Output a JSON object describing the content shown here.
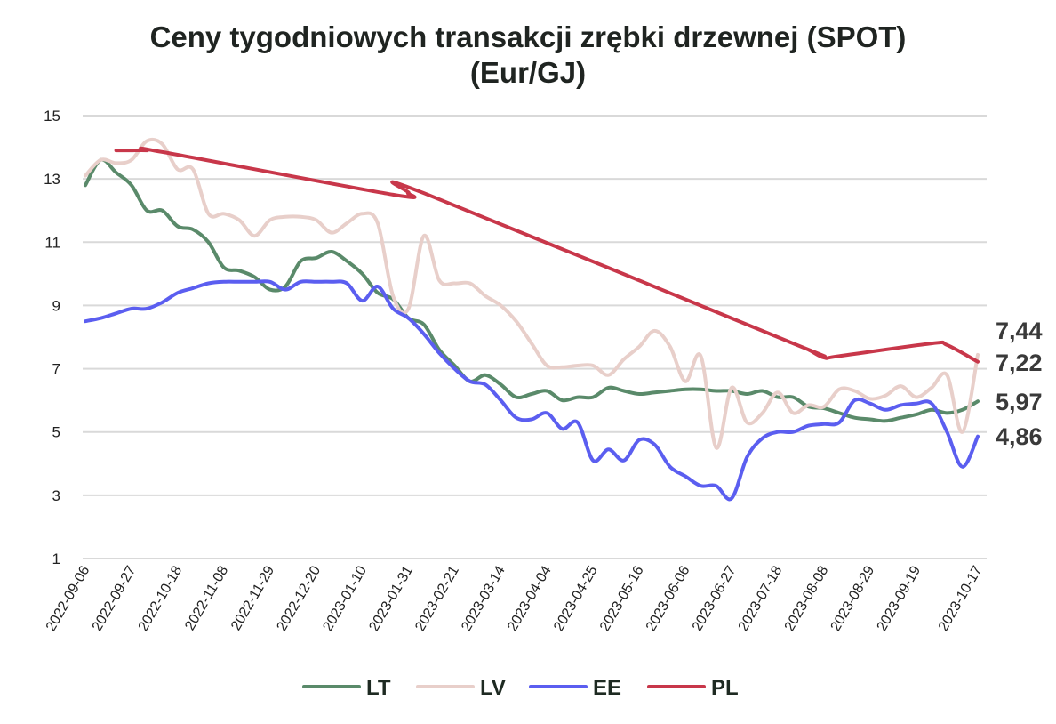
{
  "chart_data": {
    "type": "line",
    "title_line1": "Ceny tygodniowych transakcji zrębki drzewnej (SPOT)",
    "title_line2": "(Eur/GJ)",
    "xlabel": "",
    "ylabel": "",
    "ylim": [
      1,
      15
    ],
    "yticks": [
      "1",
      "3",
      "5",
      "7",
      "9",
      "11",
      "13",
      "15"
    ],
    "grid": true,
    "legend_position": "bottom",
    "x_tick_labels": [
      "2022-09-06",
      "2022-09-27",
      "2022-10-18",
      "2022-11-08",
      "2022-11-29",
      "2022-12-20",
      "2023-01-10",
      "2023-01-31",
      "2023-02-21",
      "2023-03-14",
      "2023-04-04",
      "2023-04-25",
      "2023-05-16",
      "2023-06-06",
      "2023-06-27",
      "2023-07-18",
      "2023-08-08",
      "2023-08-29",
      "2023-09-19",
      "2023-10-17"
    ],
    "end_labels": [
      "7,44",
      "7,22",
      "5,97",
      "4,86"
    ],
    "series": [
      {
        "name": "LT",
        "color": "#5a8a6a",
        "points": [
          [
            "2022-09-06",
            12.8
          ],
          [
            "2022-09-13",
            13.6
          ],
          [
            "2022-09-20",
            13.2
          ],
          [
            "2022-09-27",
            12.8
          ],
          [
            "2022-10-04",
            12.0
          ],
          [
            "2022-10-11",
            12.0
          ],
          [
            "2022-10-18",
            11.5
          ],
          [
            "2022-10-25",
            11.4
          ],
          [
            "2022-11-01",
            11.0
          ],
          [
            "2022-11-08",
            10.2
          ],
          [
            "2022-11-15",
            10.1
          ],
          [
            "2022-11-22",
            9.9
          ],
          [
            "2022-11-29",
            9.5
          ],
          [
            "2022-12-06",
            9.6
          ],
          [
            "2022-12-13",
            10.4
          ],
          [
            "2022-12-20",
            10.5
          ],
          [
            "2022-12-27",
            10.7
          ],
          [
            "2023-01-03",
            10.4
          ],
          [
            "2023-01-10",
            10.0
          ],
          [
            "2023-01-17",
            9.4
          ],
          [
            "2023-01-24",
            9.2
          ],
          [
            "2023-01-31",
            8.6
          ],
          [
            "2023-02-07",
            8.4
          ],
          [
            "2023-02-14",
            7.6
          ],
          [
            "2023-02-21",
            7.1
          ],
          [
            "2023-02-28",
            6.6
          ],
          [
            "2023-03-07",
            6.8
          ],
          [
            "2023-03-14",
            6.5
          ],
          [
            "2023-03-21",
            6.1
          ],
          [
            "2023-03-28",
            6.2
          ],
          [
            "2023-04-04",
            6.3
          ],
          [
            "2023-04-11",
            6.0
          ],
          [
            "2023-04-18",
            6.1
          ],
          [
            "2023-04-25",
            6.1
          ],
          [
            "2023-05-02",
            6.4
          ],
          [
            "2023-05-09",
            6.3
          ],
          [
            "2023-05-16",
            6.2
          ],
          [
            "2023-05-23",
            6.25
          ],
          [
            "2023-05-30",
            6.3
          ],
          [
            "2023-06-06",
            6.35
          ],
          [
            "2023-06-13",
            6.35
          ],
          [
            "2023-06-20",
            6.3
          ],
          [
            "2023-06-27",
            6.3
          ],
          [
            "2023-07-04",
            6.2
          ],
          [
            "2023-07-11",
            6.3
          ],
          [
            "2023-07-18",
            6.1
          ],
          [
            "2023-07-25",
            6.1
          ],
          [
            "2023-08-01",
            5.8
          ],
          [
            "2023-08-08",
            5.75
          ],
          [
            "2023-08-15",
            5.6
          ],
          [
            "2023-08-22",
            5.45
          ],
          [
            "2023-08-29",
            5.4
          ],
          [
            "2023-09-05",
            5.35
          ],
          [
            "2023-09-12",
            5.45
          ],
          [
            "2023-09-19",
            5.55
          ],
          [
            "2023-09-26",
            5.7
          ],
          [
            "2023-10-03",
            5.6
          ],
          [
            "2023-10-10",
            5.7
          ],
          [
            "2023-10-17",
            5.97
          ]
        ]
      },
      {
        "name": "LV",
        "color": "#e8cfca",
        "points": [
          [
            "2022-09-06",
            13.1
          ],
          [
            "2022-09-13",
            13.6
          ],
          [
            "2022-09-20",
            13.5
          ],
          [
            "2022-09-27",
            13.6
          ],
          [
            "2022-10-04",
            14.2
          ],
          [
            "2022-10-11",
            14.1
          ],
          [
            "2022-10-18",
            13.3
          ],
          [
            "2022-10-25",
            13.3
          ],
          [
            "2022-11-01",
            11.9
          ],
          [
            "2022-11-08",
            11.9
          ],
          [
            "2022-11-15",
            11.7
          ],
          [
            "2022-11-22",
            11.2
          ],
          [
            "2022-11-29",
            11.7
          ],
          [
            "2022-12-06",
            11.8
          ],
          [
            "2022-12-13",
            11.8
          ],
          [
            "2022-12-20",
            11.7
          ],
          [
            "2022-12-27",
            11.3
          ],
          [
            "2023-01-03",
            11.6
          ],
          [
            "2023-01-10",
            11.9
          ],
          [
            "2023-01-17",
            11.6
          ],
          [
            "2023-01-24",
            9.3
          ],
          [
            "2023-01-31",
            8.9
          ],
          [
            "2023-02-07",
            11.2
          ],
          [
            "2023-02-14",
            9.8
          ],
          [
            "2023-02-21",
            9.7
          ],
          [
            "2023-02-28",
            9.7
          ],
          [
            "2023-03-07",
            9.3
          ],
          [
            "2023-03-14",
            9.0
          ],
          [
            "2023-03-21",
            8.5
          ],
          [
            "2023-03-28",
            7.8
          ],
          [
            "2023-04-04",
            7.1
          ],
          [
            "2023-04-11",
            7.05
          ],
          [
            "2023-04-18",
            7.1
          ],
          [
            "2023-04-25",
            7.1
          ],
          [
            "2023-05-02",
            6.8
          ],
          [
            "2023-05-09",
            7.3
          ],
          [
            "2023-05-16",
            7.7
          ],
          [
            "2023-05-23",
            8.2
          ],
          [
            "2023-05-30",
            7.7
          ],
          [
            "2023-06-06",
            6.6
          ],
          [
            "2023-06-13",
            7.4
          ],
          [
            "2023-06-20",
            4.5
          ],
          [
            "2023-06-27",
            6.4
          ],
          [
            "2023-07-04",
            5.3
          ],
          [
            "2023-07-11",
            5.6
          ],
          [
            "2023-07-18",
            6.25
          ],
          [
            "2023-07-25",
            5.6
          ],
          [
            "2023-08-01",
            5.85
          ],
          [
            "2023-08-08",
            5.8
          ],
          [
            "2023-08-15",
            6.35
          ],
          [
            "2023-08-22",
            6.3
          ],
          [
            "2023-08-29",
            6.05
          ],
          [
            "2023-09-05",
            6.15
          ],
          [
            "2023-09-12",
            6.45
          ],
          [
            "2023-09-19",
            6.1
          ],
          [
            "2023-09-26",
            6.4
          ],
          [
            "2023-10-03",
            6.8
          ],
          [
            "2023-10-10",
            5.0
          ],
          [
            "2023-10-17",
            7.44
          ]
        ]
      },
      {
        "name": "EE",
        "color": "#5b5ef0",
        "points": [
          [
            "2022-09-06",
            8.5
          ],
          [
            "2022-09-13",
            8.6
          ],
          [
            "2022-09-20",
            8.75
          ],
          [
            "2022-09-27",
            8.9
          ],
          [
            "2022-10-04",
            8.9
          ],
          [
            "2022-10-11",
            9.1
          ],
          [
            "2022-10-18",
            9.4
          ],
          [
            "2022-10-25",
            9.55
          ],
          [
            "2022-11-01",
            9.7
          ],
          [
            "2022-11-08",
            9.75
          ],
          [
            "2022-11-15",
            9.75
          ],
          [
            "2022-11-22",
            9.75
          ],
          [
            "2022-11-29",
            9.75
          ],
          [
            "2022-12-06",
            9.5
          ],
          [
            "2022-12-13",
            9.75
          ],
          [
            "2022-12-20",
            9.75
          ],
          [
            "2022-12-27",
            9.75
          ],
          [
            "2023-01-03",
            9.7
          ],
          [
            "2023-01-10",
            9.15
          ],
          [
            "2023-01-17",
            9.6
          ],
          [
            "2023-01-24",
            8.9
          ],
          [
            "2023-01-31",
            8.6
          ],
          [
            "2023-02-07",
            8.1
          ],
          [
            "2023-02-14",
            7.5
          ],
          [
            "2023-02-21",
            7.0
          ],
          [
            "2023-02-28",
            6.6
          ],
          [
            "2023-03-07",
            6.5
          ],
          [
            "2023-03-14",
            6.0
          ],
          [
            "2023-03-21",
            5.45
          ],
          [
            "2023-03-28",
            5.4
          ],
          [
            "2023-04-04",
            5.6
          ],
          [
            "2023-04-11",
            5.1
          ],
          [
            "2023-04-18",
            5.3
          ],
          [
            "2023-04-25",
            4.1
          ],
          [
            "2023-05-02",
            4.45
          ],
          [
            "2023-05-09",
            4.1
          ],
          [
            "2023-05-16",
            4.75
          ],
          [
            "2023-05-23",
            4.6
          ],
          [
            "2023-05-30",
            3.9
          ],
          [
            "2023-06-06",
            3.6
          ],
          [
            "2023-06-13",
            3.3
          ],
          [
            "2023-06-20",
            3.3
          ],
          [
            "2023-06-27",
            2.9
          ],
          [
            "2023-07-04",
            4.2
          ],
          [
            "2023-07-11",
            4.8
          ],
          [
            "2023-07-18",
            5.0
          ],
          [
            "2023-07-25",
            5.0
          ],
          [
            "2023-08-01",
            5.2
          ],
          [
            "2023-08-08",
            5.25
          ],
          [
            "2023-08-15",
            5.3
          ],
          [
            "2023-08-22",
            6.0
          ],
          [
            "2023-08-29",
            5.9
          ],
          [
            "2023-09-05",
            5.7
          ],
          [
            "2023-09-12",
            5.85
          ],
          [
            "2023-09-19",
            5.9
          ],
          [
            "2023-09-26",
            5.9
          ],
          [
            "2023-10-03",
            5.0
          ],
          [
            "2023-10-10",
            3.9
          ],
          [
            "2023-10-17",
            4.86
          ]
        ]
      },
      {
        "name": "PL",
        "color": "#c8374a",
        "points": [
          [
            "2022-09-20",
            13.9
          ],
          [
            "2022-09-27",
            13.9
          ],
          [
            "2022-10-04",
            13.9
          ],
          [
            "2022-10-11",
            13.85
          ],
          [
            "2023-01-24",
            12.5
          ],
          [
            "2023-01-31",
            12.55
          ],
          [
            "2023-02-07",
            12.55
          ],
          [
            "2023-07-25",
            7.8
          ],
          [
            "2023-08-01",
            7.6
          ],
          [
            "2023-08-08",
            7.35
          ],
          [
            "2023-08-15",
            7.4
          ],
          [
            "2023-09-26",
            7.8
          ],
          [
            "2023-10-03",
            7.75
          ],
          [
            "2023-10-17",
            7.22
          ]
        ]
      }
    ]
  }
}
